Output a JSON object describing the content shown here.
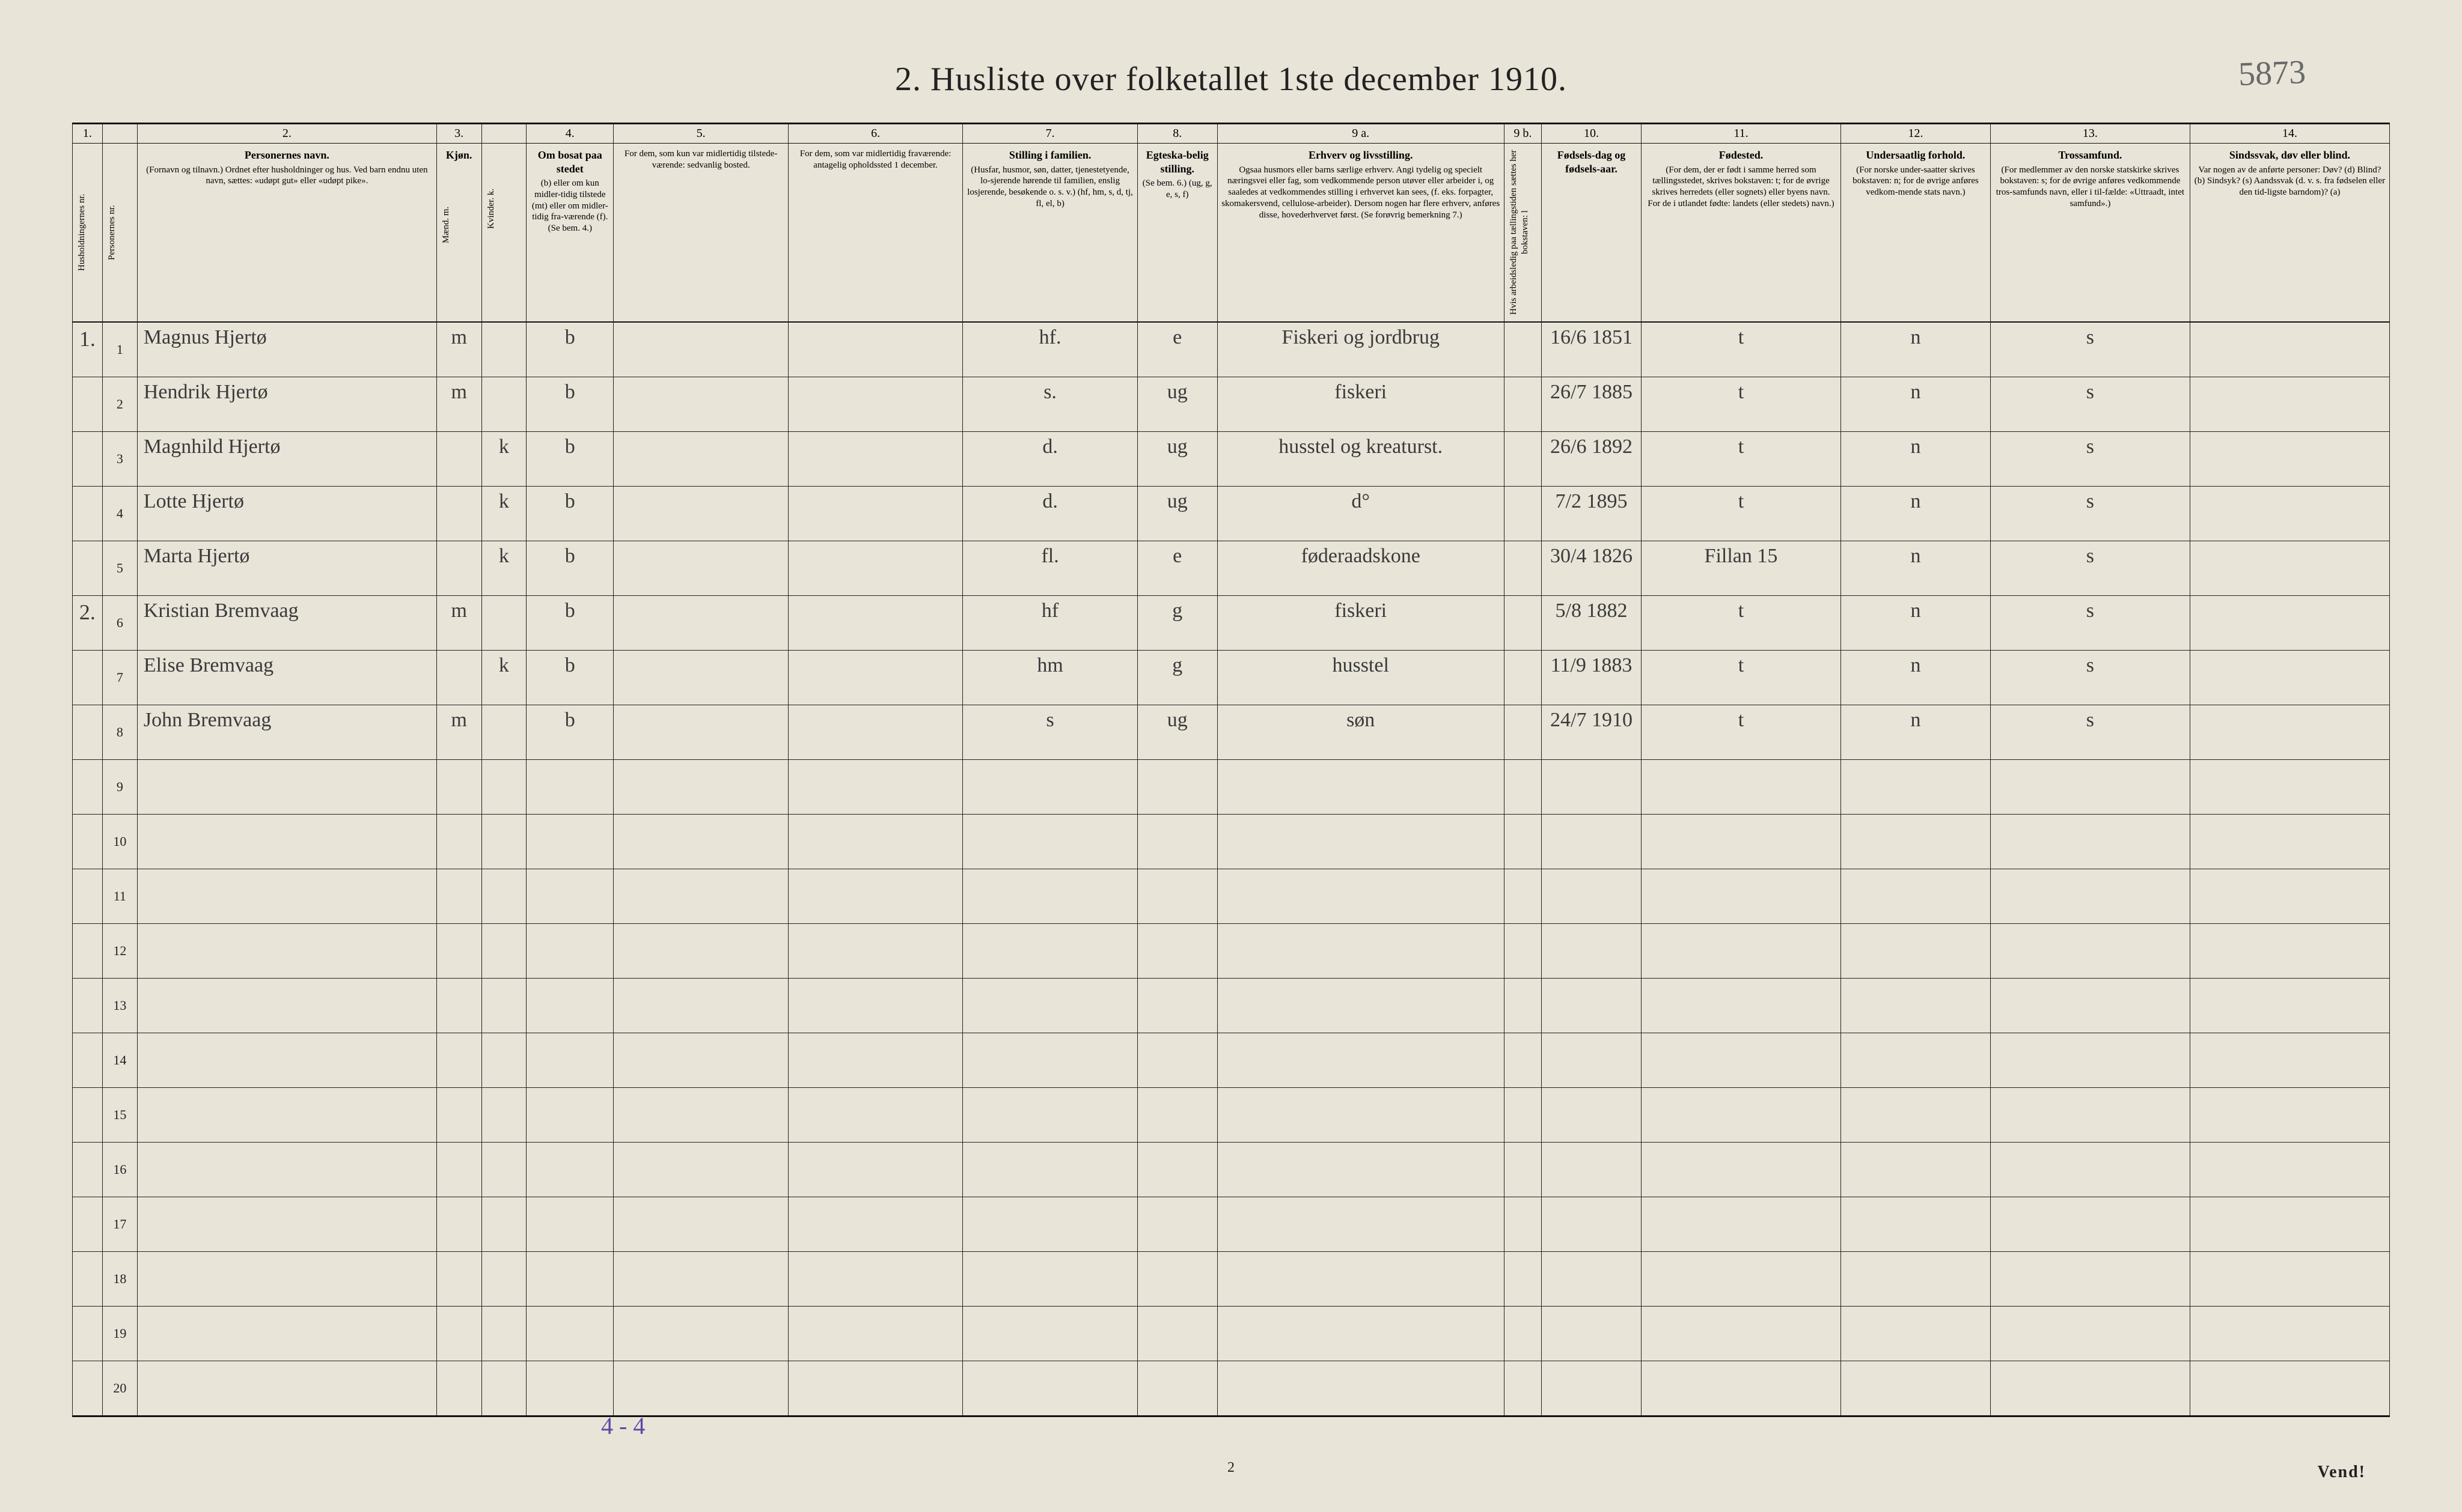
{
  "page": {
    "title": "2.  Husliste over folketallet 1ste december 1910.",
    "top_right_annotation": "5873",
    "footer_page_number": "2",
    "footer_vend": "Vend!",
    "bottom_tally": "4 - 4",
    "background_color": "#e8e4d8",
    "ink_color": "#222222",
    "handwriting_color": "#3a3a3a",
    "annotation_color": "#6a6a6a",
    "tally_color": "#5a4aa8"
  },
  "columns": {
    "numbers": [
      "1.",
      "",
      "2.",
      "3.",
      "",
      "4.",
      "5.",
      "6.",
      "7.",
      "8.",
      "9 a.",
      "9 b.",
      "10.",
      "11.",
      "12.",
      "13.",
      "14."
    ],
    "headers": [
      {
        "title": "",
        "sub": "Husholdningernes nr."
      },
      {
        "title": "",
        "sub": "Personernes nr."
      },
      {
        "title": "Personernes navn.",
        "sub": "(Fornavn og tilnavn.)  Ordnet efter husholdninger og hus.  Ved barn endnu uten navn, sættes: «udøpt gut» eller «udøpt pike»."
      },
      {
        "title": "Kjøn.",
        "sub": "Mænd. m."
      },
      {
        "title": "",
        "sub": "Kvinder. k."
      },
      {
        "title": "Om bosat paa stedet",
        "sub": "(b) eller om kun midler-tidig tilstede (mt) eller om midler-tidig fra-værende (f). (Se bem. 4.)"
      },
      {
        "title": "",
        "sub": "For dem, som kun var midlertidig tilstede-værende:  sedvanlig bosted."
      },
      {
        "title": "",
        "sub": "For dem, som var midlertidig fraværende:  antagelig opholdssted 1 december."
      },
      {
        "title": "Stilling i familien.",
        "sub": "(Husfar, husmor, søn, datter, tjenestetyende, lo-sjerende hørende til familien, enslig losjerende, besøkende o. s. v.)  (hf, hm, s, d, tj, fl, el, b)"
      },
      {
        "title": "Egteska-belig stilling.",
        "sub": "(Se bem. 6.) (ug, g, e, s, f)"
      },
      {
        "title": "Erhverv og livsstilling.",
        "sub": "Ogsaa husmors eller barns særlige erhverv. Angi tydelig og specielt næringsvei eller fag, som vedkommende person utøver eller arbeider i, og saaledes at vedkommendes stilling i erhvervet kan sees, (f. eks. forpagter, skomakersvend, cellulose-arbeider). Dersom nogen har flere erhverv, anføres disse, hovederhvervet først. (Se forøvrig bemerkning 7.)"
      },
      {
        "title": "",
        "sub": "Hvis arbeidsledig paa tællingstiden sættes her bokstaven: l"
      },
      {
        "title": "Fødsels-dag og fødsels-aar.",
        "sub": ""
      },
      {
        "title": "Fødested.",
        "sub": "(For dem, der er født i samme herred som tællingsstedet, skrives bokstaven: t; for de øvrige skrives herredets (eller sognets) eller byens navn. For de i utlandet fødte: landets (eller stedets) navn.)"
      },
      {
        "title": "Undersaatlig forhold.",
        "sub": "(For norske under-saatter skrives bokstaven: n; for de øvrige anføres vedkom-mende stats navn.)"
      },
      {
        "title": "Trossamfund.",
        "sub": "(For medlemmer av den norske statskirke skrives bokstaven: s; for de øvrige anføres vedkommende tros-samfunds navn, eller i til-fælde: «Uttraadt, intet samfund».)"
      },
      {
        "title": "Sindssvak, døv eller blind.",
        "sub": "Var nogen av de anførte personer: Døv? (d)  Blind? (b)  Sindsyk? (s)  Aandssvak (d. v. s. fra fødselen eller den tid-ligste barndom)? (a)"
      }
    ]
  },
  "rows": [
    {
      "hh": "1.",
      "pn": "1",
      "name": "Magnus Hjertø",
      "m": "m",
      "k": "",
      "res": "b",
      "c5": "",
      "c6": "",
      "fam": "hf.",
      "marit": "e",
      "occ": "Fiskeri og jordbrug",
      "c9b": "",
      "dob": "16/6 1851",
      "birthplace": "t",
      "nat": "n",
      "rel": "s",
      "c14": ""
    },
    {
      "hh": "",
      "pn": "2",
      "name": "Hendrik Hjertø",
      "m": "m",
      "k": "",
      "res": "b",
      "c5": "",
      "c6": "",
      "fam": "s.",
      "marit": "ug",
      "occ": "fiskeri",
      "c9b": "",
      "dob": "26/7 1885",
      "birthplace": "t",
      "nat": "n",
      "rel": "s",
      "c14": ""
    },
    {
      "hh": "",
      "pn": "3",
      "name": "Magnhild Hjertø",
      "m": "",
      "k": "k",
      "res": "b",
      "c5": "",
      "c6": "",
      "fam": "d.",
      "marit": "ug",
      "occ": "husstel og kreaturst.",
      "c9b": "",
      "dob": "26/6 1892",
      "birthplace": "t",
      "nat": "n",
      "rel": "s",
      "c14": ""
    },
    {
      "hh": "",
      "pn": "4",
      "name": "Lotte Hjertø",
      "m": "",
      "k": "k",
      "res": "b",
      "c5": "",
      "c6": "",
      "fam": "d.",
      "marit": "ug",
      "occ": "d°",
      "c9b": "",
      "dob": "7/2 1895",
      "birthplace": "t",
      "nat": "n",
      "rel": "s",
      "c14": ""
    },
    {
      "hh": "",
      "pn": "5",
      "name": "Marta Hjertø",
      "m": "",
      "k": "k",
      "res": "b",
      "c5": "",
      "c6": "",
      "fam": "fl.",
      "marit": "e",
      "occ": "føderaadskone",
      "c9b": "",
      "dob": "30/4 1826",
      "birthplace": "Fillan  15",
      "nat": "n",
      "rel": "s",
      "c14": ""
    },
    {
      "hh": "2.",
      "pn": "6",
      "name": "Kristian Bremvaag",
      "m": "m",
      "k": "",
      "res": "b",
      "c5": "",
      "c6": "",
      "fam": "hf",
      "marit": "g",
      "occ": "fiskeri",
      "c9b": "",
      "dob": "5/8 1882",
      "birthplace": "t",
      "nat": "n",
      "rel": "s",
      "c14": ""
    },
    {
      "hh": "",
      "pn": "7",
      "name": "Elise Bremvaag",
      "m": "",
      "k": "k",
      "res": "b",
      "c5": "",
      "c6": "",
      "fam": "hm",
      "marit": "g",
      "occ": "husstel",
      "c9b": "",
      "dob": "11/9 1883",
      "birthplace": "t",
      "nat": "n",
      "rel": "s",
      "c14": ""
    },
    {
      "hh": "",
      "pn": "8",
      "name": "John Bremvaag",
      "m": "m",
      "k": "",
      "res": "b",
      "c5": "",
      "c6": "",
      "fam": "s",
      "marit": "ug",
      "occ": "søn",
      "c9b": "",
      "dob": "24/7 1910",
      "birthplace": "t",
      "nat": "n",
      "rel": "s",
      "c14": ""
    }
  ],
  "empty_row_numbers": [
    "9",
    "10",
    "11",
    "12",
    "13",
    "14",
    "15",
    "16",
    "17",
    "18",
    "19",
    "20"
  ]
}
